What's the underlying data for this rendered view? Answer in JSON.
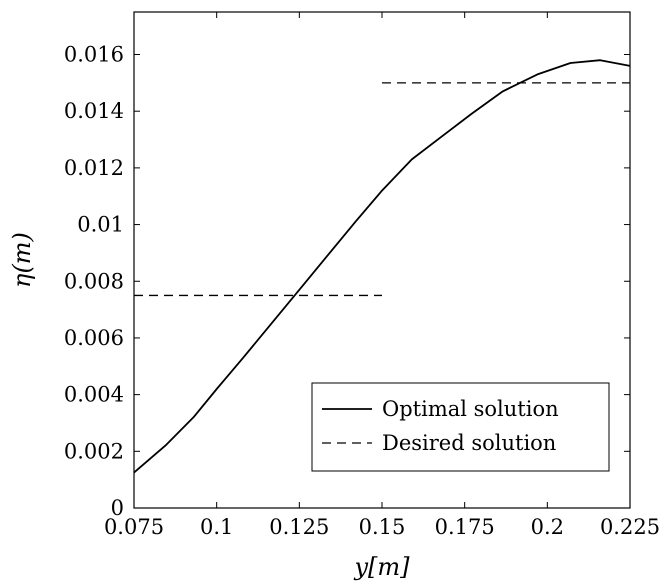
{
  "chart_data": {
    "type": "line",
    "title": "",
    "xlabel": "y[m]",
    "ylabel": "η(m)",
    "xlim": [
      0.075,
      0.225
    ],
    "ylim": [
      0,
      0.0175
    ],
    "x_ticks": [
      0.075,
      0.1,
      0.125,
      0.15,
      0.175,
      0.2,
      0.225
    ],
    "x_tick_labels": [
      "0.075",
      "0.1",
      "0.125",
      "0.15",
      "0.175",
      "0.2",
      "0.225"
    ],
    "y_ticks": [
      0,
      0.002,
      0.004,
      0.006,
      0.008,
      0.01,
      0.012,
      0.014,
      0.016
    ],
    "y_tick_labels": [
      "0",
      "0.002",
      "0.004",
      "0.006",
      "0.008",
      "0.01",
      "0.012",
      "0.014",
      "0.016"
    ],
    "grid": false,
    "legend_position": "bottom-right",
    "series": [
      {
        "name": "Optimal solution",
        "style": "solid",
        "color": "#000000",
        "x": [
          0.075,
          0.0845,
          0.093,
          0.1,
          0.108,
          0.1165,
          0.125,
          0.1335,
          0.142,
          0.15,
          0.159,
          0.168,
          0.177,
          0.1865,
          0.197,
          0.207,
          0.216,
          0.225
        ],
        "y": [
          0.00125,
          0.0022,
          0.0032,
          0.0042,
          0.0053,
          0.0065,
          0.0077,
          0.0089,
          0.0101,
          0.0112,
          0.0123,
          0.0131,
          0.0139,
          0.0147,
          0.0153,
          0.0157,
          0.0158,
          0.0156
        ]
      },
      {
        "name": "Desired solution",
        "style": "dashed",
        "color": "#000000",
        "segments": [
          {
            "x": [
              0.075,
              0.15
            ],
            "y": [
              0.0075,
              0.0075
            ]
          },
          {
            "x": [
              0.15,
              0.225
            ],
            "y": [
              0.015,
              0.015
            ]
          }
        ]
      }
    ]
  }
}
